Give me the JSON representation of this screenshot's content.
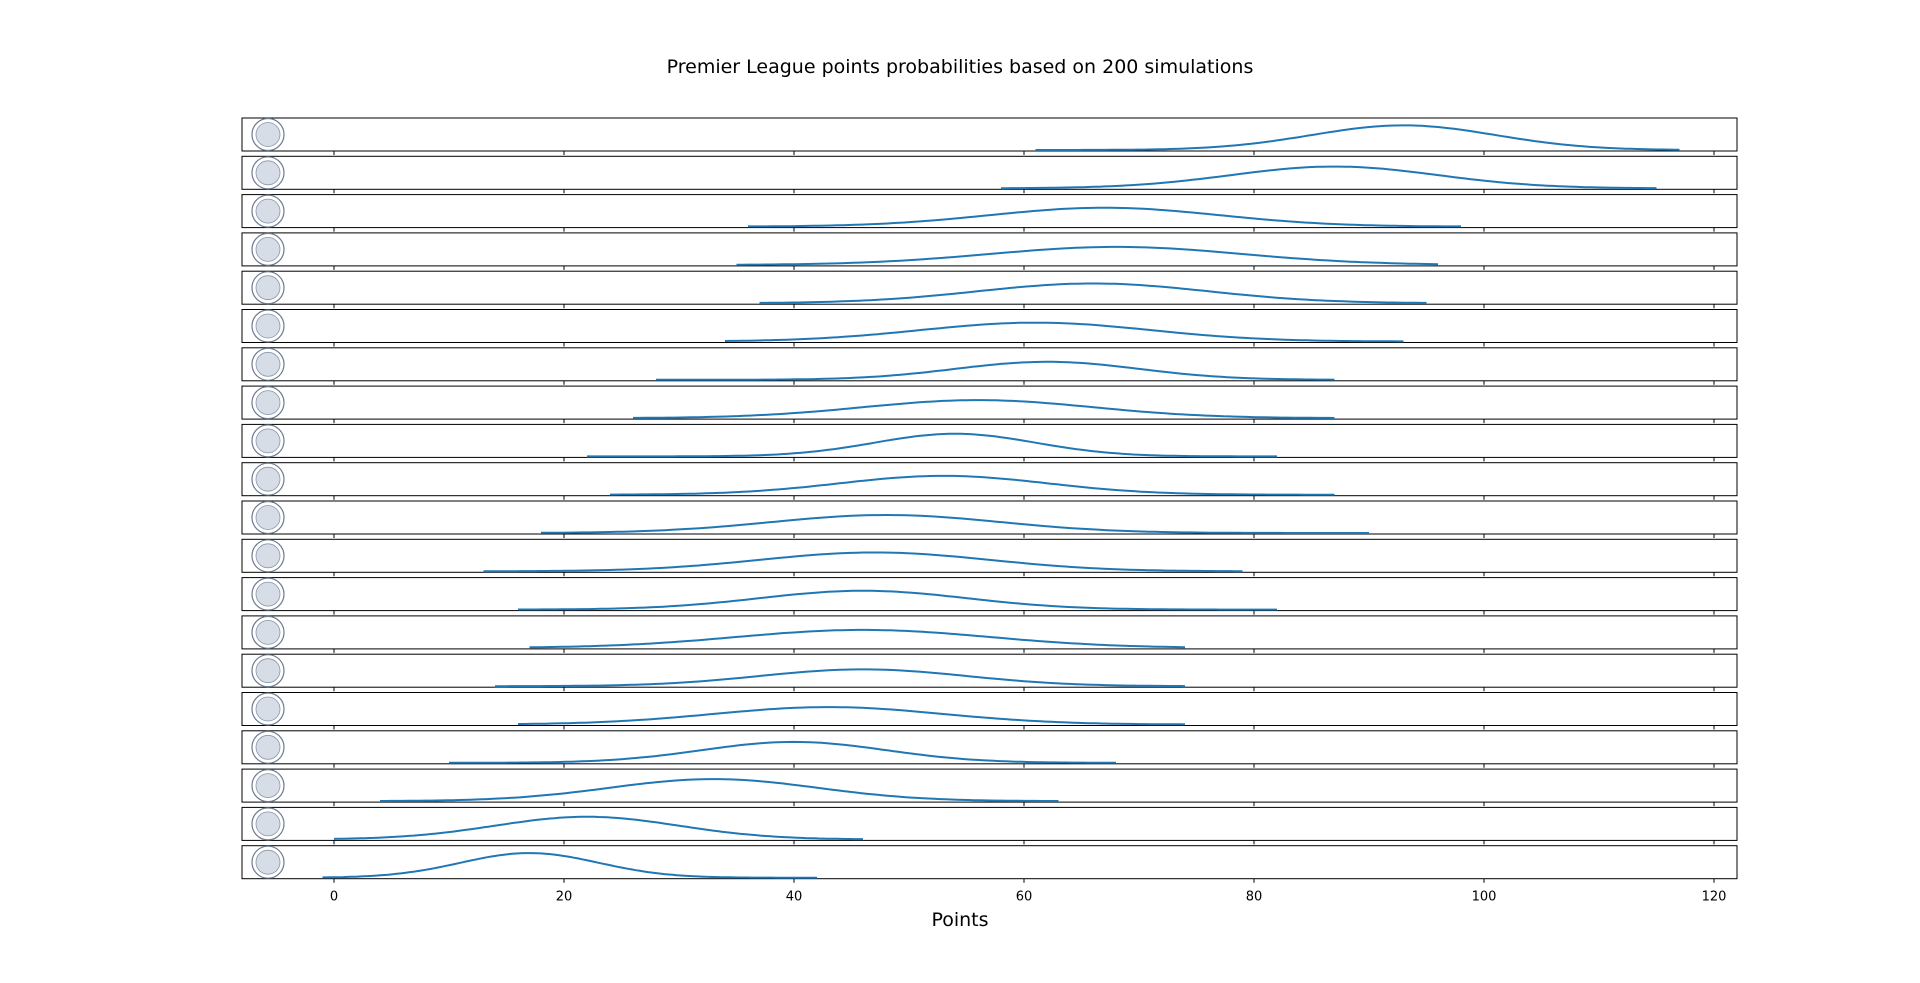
{
  "chart_data": {
    "type": "ridgeline",
    "title": "Premier League points probabilities based on 200 simulations",
    "xlabel": "Points",
    "xlim": [
      -8,
      122
    ],
    "xticks": [
      0,
      20,
      40,
      60,
      80,
      100,
      120
    ],
    "line_color": "#1f77b4",
    "series": [
      {
        "crest": "liverpool-crest",
        "mode": 93,
        "sd": 8,
        "range": [
          61,
          117
        ],
        "peak": 0.85
      },
      {
        "crest": "man-city-crest",
        "mode": 87,
        "sd": 9,
        "range": [
          58,
          115
        ],
        "peak": 0.75
      },
      {
        "crest": "chelsea-crest",
        "mode": 67,
        "sd": 10,
        "range": [
          36,
          98
        ],
        "peak": 0.65
      },
      {
        "crest": "tottenham-crest",
        "mode": 68,
        "sd": 11,
        "range": [
          35,
          96
        ],
        "peak": 0.62
      },
      {
        "crest": "arsenal-crest",
        "mode": 66,
        "sd": 10,
        "range": [
          37,
          95
        ],
        "peak": 0.68
      },
      {
        "crest": "crystal-palace-crest",
        "mode": 61,
        "sd": 10,
        "range": [
          34,
          93
        ],
        "peak": 0.65
      },
      {
        "crest": "leicester-crest",
        "mode": 62,
        "sd": 8,
        "range": [
          28,
          87
        ],
        "peak": 0.62
      },
      {
        "crest": "man-united-crest",
        "mode": 56,
        "sd": 10,
        "range": [
          26,
          87
        ],
        "peak": 0.62
      },
      {
        "crest": "west-ham-crest",
        "mode": 54,
        "sd": 7,
        "range": [
          22,
          82
        ],
        "peak": 0.78
      },
      {
        "crest": "brentford-crest",
        "mode": 53,
        "sd": 9,
        "range": [
          24,
          87
        ],
        "peak": 0.65
      },
      {
        "crest": "brighton-crest",
        "mode": 48,
        "sd": 10,
        "range": [
          18,
          90
        ],
        "peak": 0.62
      },
      {
        "crest": "southampton-crest",
        "mode": 47,
        "sd": 10,
        "range": [
          13,
          79
        ],
        "peak": 0.65
      },
      {
        "crest": "aston-villa-crest",
        "mode": 46,
        "sd": 9,
        "range": [
          16,
          82
        ],
        "peak": 0.65
      },
      {
        "crest": "everton-crest",
        "mode": 46,
        "sd": 11,
        "range": [
          17,
          74
        ],
        "peak": 0.62
      },
      {
        "crest": "newcastle-crest",
        "mode": 46,
        "sd": 9,
        "range": [
          14,
          74
        ],
        "peak": 0.58
      },
      {
        "crest": "wolves-crest",
        "mode": 43,
        "sd": 10,
        "range": [
          16,
          74
        ],
        "peak": 0.6
      },
      {
        "crest": "burnley-crest",
        "mode": 40,
        "sd": 8,
        "range": [
          10,
          68
        ],
        "peak": 0.72
      },
      {
        "crest": "leeds-crest",
        "mode": 33,
        "sd": 9,
        "range": [
          4,
          63
        ],
        "peak": 0.76
      },
      {
        "crest": "watford-crest",
        "mode": 22,
        "sd": 8,
        "range": [
          0,
          46
        ],
        "peak": 0.78
      },
      {
        "crest": "norwich-crest",
        "mode": 17,
        "sd": 6,
        "range": [
          -1,
          42
        ],
        "peak": 0.85
      }
    ]
  }
}
